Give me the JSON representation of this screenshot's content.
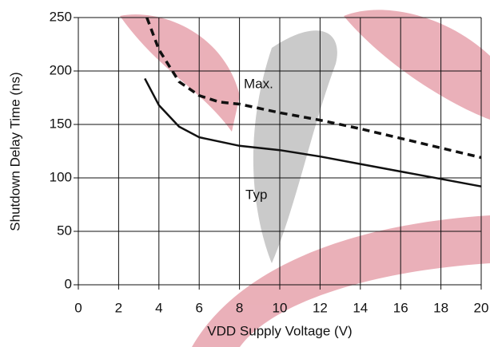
{
  "chart_data": {
    "type": "line",
    "x_label": "VDD Supply Voltage (V)",
    "y_label": "Shutdown Delay Time (ns)",
    "annotations": [
      "Max.",
      "Typ"
    ],
    "series": [
      {
        "name": "Max.",
        "color": "#111111",
        "dashed": true,
        "x": [
          3.4,
          4,
          5,
          6,
          7,
          8,
          10,
          12,
          14,
          16,
          18,
          20
        ],
        "values": [
          250,
          220,
          190,
          177,
          171,
          169,
          161,
          154,
          146,
          137,
          128,
          119
        ]
      },
      {
        "name": "Typ",
        "color": "#111111",
        "dashed": false,
        "x": [
          3.3,
          4,
          5,
          6,
          8,
          10,
          12,
          14,
          16,
          18,
          20
        ],
        "values": [
          193,
          168,
          148,
          138,
          130,
          126,
          120,
          113,
          106,
          99,
          92
        ]
      }
    ],
    "xlim": [
      0,
      20
    ],
    "xticks": [
      0,
      2,
      4,
      6,
      8,
      10,
      12,
      14,
      16,
      18,
      20
    ],
    "ylim": [
      0,
      250
    ],
    "yticks": [
      0,
      50,
      100,
      150,
      200,
      250
    ],
    "grid": true
  }
}
